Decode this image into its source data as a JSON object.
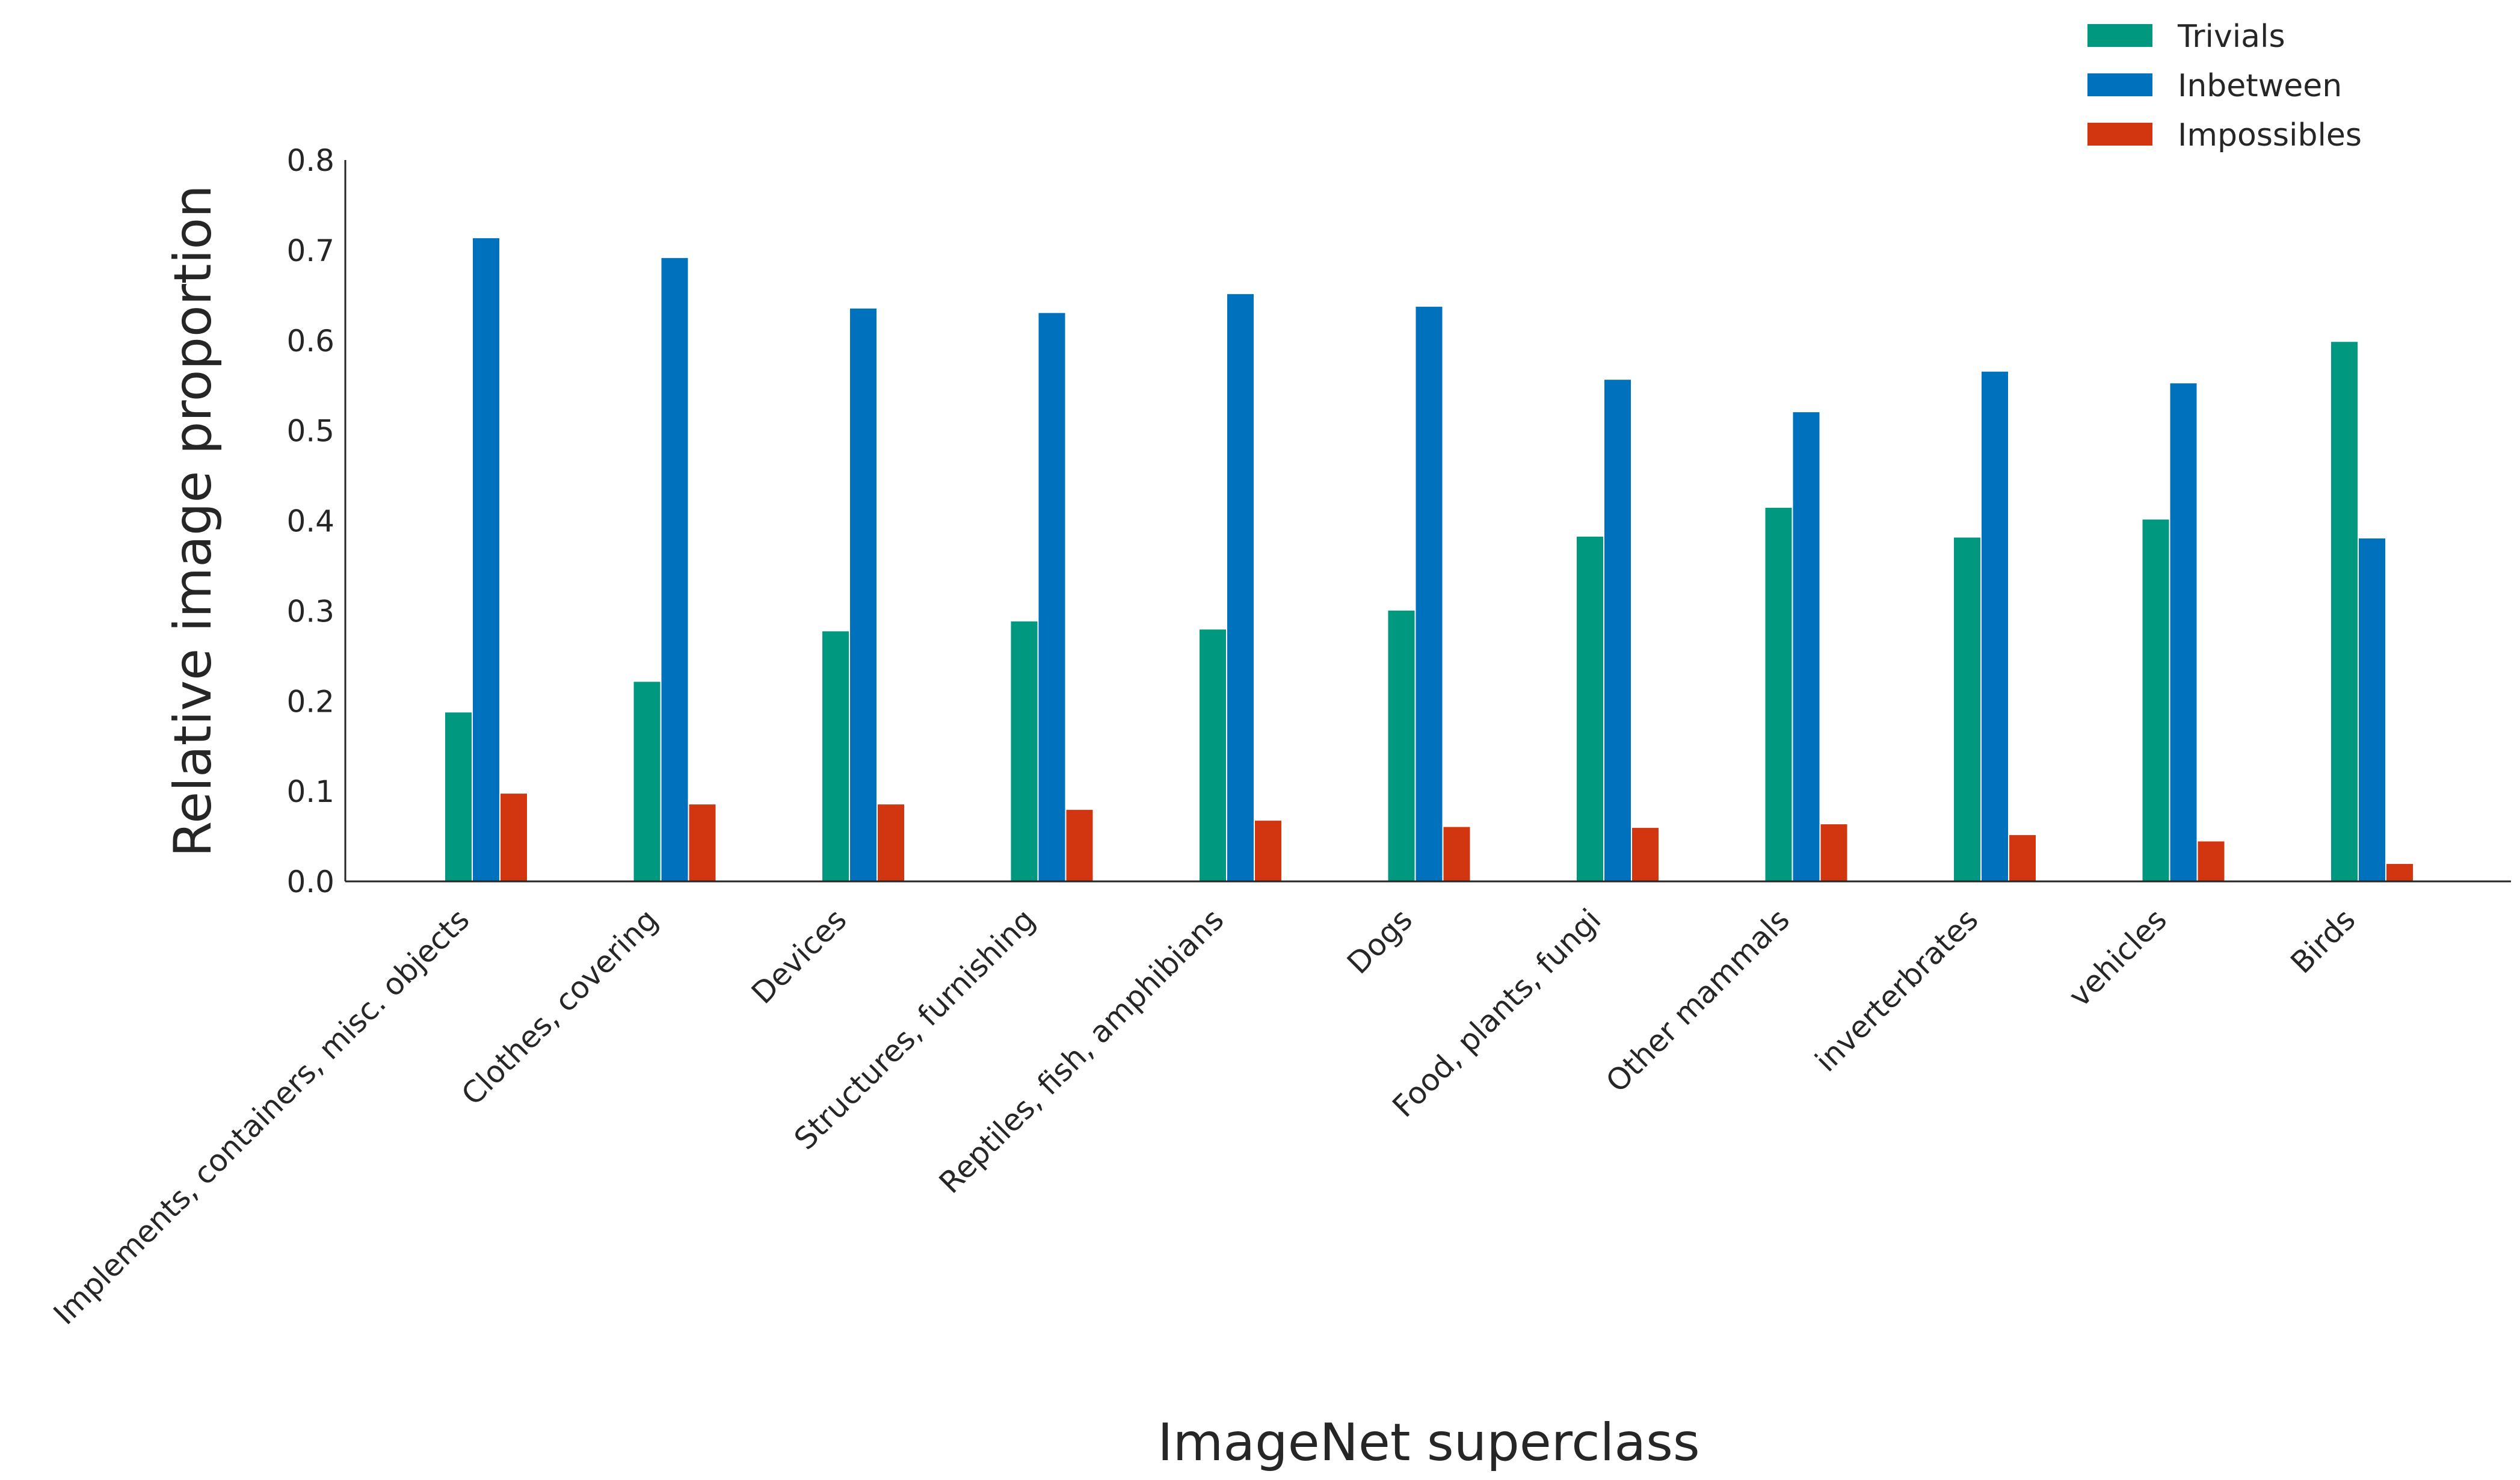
{
  "chart_data": {
    "type": "bar",
    "xlabel": "ImageNet superclass",
    "ylabel": "Relative image proportion",
    "ylim": [
      0,
      0.8
    ],
    "yticks": [
      "0.0",
      "0.1",
      "0.2",
      "0.3",
      "0.4",
      "0.5",
      "0.6",
      "0.7",
      "0.8"
    ],
    "grid": false,
    "legend_position": "top-right",
    "categories": [
      "Implements, containers, misc. objects",
      "Clothes, covering",
      "Devices",
      "Structures, furnishing",
      "Reptiles, fish, amphibians",
      "Dogs",
      "Food, plants, fungi",
      "Other mammals",
      "inverterbrates",
      "vehicles",
      "Birds"
    ],
    "series": [
      {
        "name": "Trivials",
        "color": "#009980",
        "values": [
          0.188,
          0.222,
          0.278,
          0.289,
          0.28,
          0.301,
          0.383,
          0.415,
          0.382,
          0.402,
          0.599
        ]
      },
      {
        "name": "Inbetween",
        "color": "#0072BD",
        "values": [
          0.714,
          0.692,
          0.636,
          0.631,
          0.652,
          0.638,
          0.557,
          0.521,
          0.566,
          0.553,
          0.381
        ]
      },
      {
        "name": "Impossibles",
        "color": "#D13611",
        "values": [
          0.098,
          0.086,
          0.086,
          0.08,
          0.068,
          0.061,
          0.06,
          0.064,
          0.052,
          0.045,
          0.02
        ]
      }
    ]
  }
}
